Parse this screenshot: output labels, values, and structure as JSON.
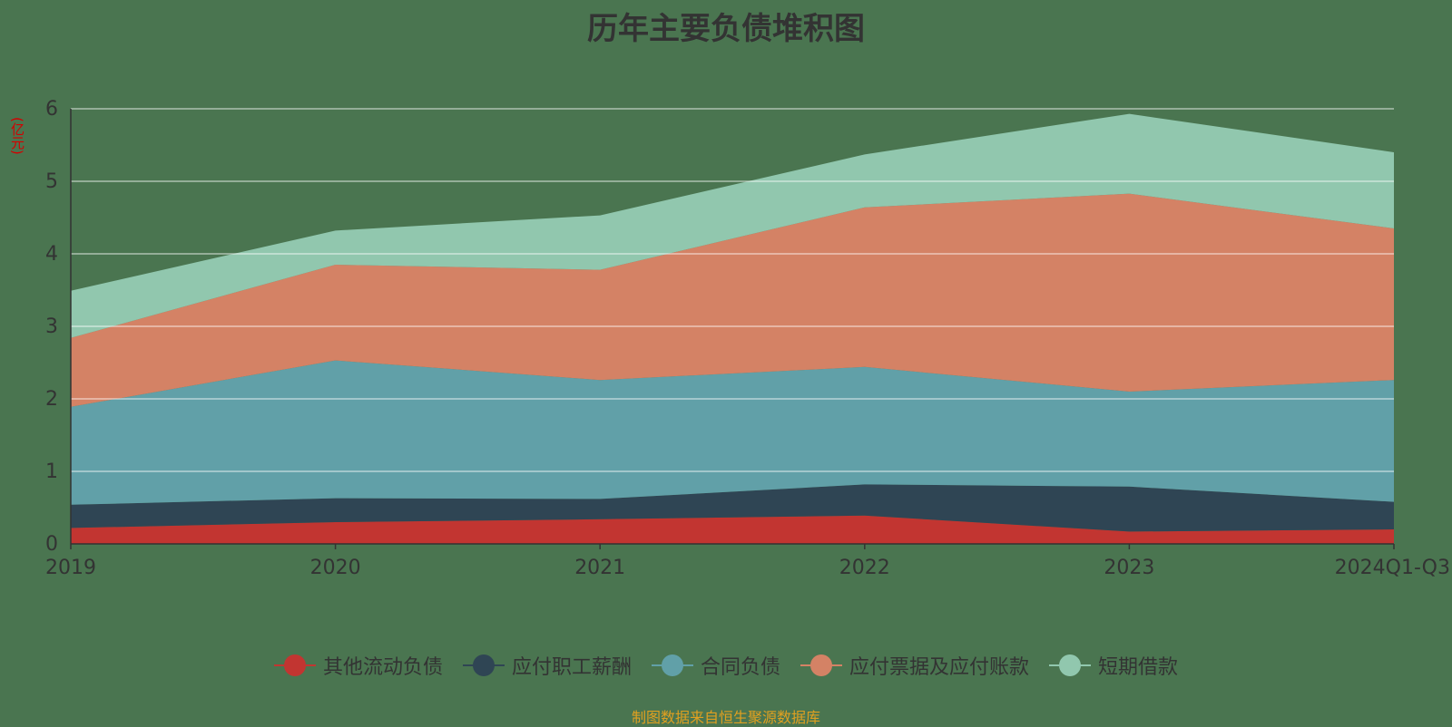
{
  "title": "历年主要负债堆积图",
  "unit": "(亿元)",
  "source_note": "制图数据来自恒生聚源数据库",
  "chart_data": {
    "type": "area",
    "stacked": true,
    "categories": [
      "2019",
      "2020",
      "2021",
      "2022",
      "2023",
      "2024Q1-Q3"
    ],
    "y_ticks": [
      "0",
      "1",
      "2",
      "3",
      "4",
      "5",
      "6"
    ],
    "ylim": [
      0,
      6
    ],
    "grid": true,
    "legend_position": "bottom",
    "series": [
      {
        "name": "其他流动负债",
        "color": "#c23531",
        "values": [
          0.22,
          0.3,
          0.34,
          0.39,
          0.17,
          0.2
        ]
      },
      {
        "name": "应付职工薪酬",
        "color": "#2f4554",
        "values": [
          0.32,
          0.33,
          0.28,
          0.43,
          0.62,
          0.38
        ]
      },
      {
        "name": "合同负债",
        "color": "#61a0a8",
        "values": [
          1.35,
          1.9,
          1.64,
          1.62,
          1.31,
          1.68
        ]
      },
      {
        "name": "应付票据及应付账款",
        "color": "#d48265",
        "values": [
          0.95,
          1.32,
          1.52,
          2.2,
          2.73,
          2.09
        ]
      },
      {
        "name": "短期借款",
        "color": "#91c7ae",
        "values": [
          0.65,
          0.47,
          0.75,
          0.73,
          1.1,
          1.05
        ]
      }
    ]
  }
}
